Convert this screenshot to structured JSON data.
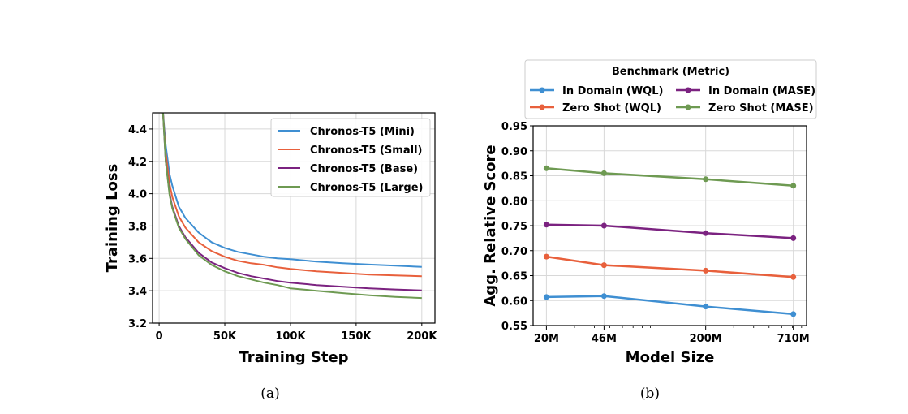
{
  "captions": {
    "a": "(a)",
    "b": "(b)"
  },
  "colors": {
    "mini": "#3f8fd2",
    "small": "#e8603c",
    "base": "#7b2280",
    "large": "#6e9a52"
  },
  "chart_data": [
    {
      "type": "line",
      "title": "",
      "xlabel": "Training Step",
      "ylabel": "Training Loss",
      "xlim": [
        -5000,
        210000
      ],
      "ylim": [
        3.2,
        4.5
      ],
      "xticks": [
        0,
        50000,
        100000,
        150000,
        200000
      ],
      "xtick_labels": [
        "0",
        "50K",
        "100K",
        "150K",
        "200K"
      ],
      "yticks": [
        3.2,
        3.4,
        3.6,
        3.8,
        4.0,
        4.2,
        4.4
      ],
      "ytick_labels": [
        "3.2",
        "3.4",
        "3.6",
        "3.8",
        "4.0",
        "4.2",
        "4.4"
      ],
      "grid": true,
      "legend_position": "top-right",
      "series": [
        {
          "name": "Chronos-T5 (Mini)",
          "color": "#3f8fd2",
          "x": [
            3000,
            5000,
            8000,
            10000,
            15000,
            20000,
            30000,
            40000,
            50000,
            60000,
            70000,
            80000,
            90000,
            100000,
            120000,
            140000,
            160000,
            180000,
            200000
          ],
          "y": [
            4.5,
            4.3,
            4.12,
            4.05,
            3.92,
            3.85,
            3.76,
            3.7,
            3.665,
            3.64,
            3.625,
            3.61,
            3.6,
            3.595,
            3.58,
            3.57,
            3.562,
            3.555,
            3.548
          ]
        },
        {
          "name": "Chronos-T5 (Small)",
          "color": "#e8603c",
          "x": [
            3000,
            5000,
            8000,
            10000,
            15000,
            20000,
            30000,
            40000,
            50000,
            60000,
            70000,
            80000,
            90000,
            100000,
            120000,
            140000,
            160000,
            180000,
            200000
          ],
          "y": [
            4.5,
            4.25,
            4.06,
            3.98,
            3.86,
            3.79,
            3.7,
            3.645,
            3.61,
            3.585,
            3.57,
            3.56,
            3.545,
            3.535,
            3.52,
            3.51,
            3.5,
            3.495,
            3.49
          ]
        },
        {
          "name": "Chronos-T5 (Base)",
          "color": "#7b2280",
          "x": [
            3000,
            5000,
            8000,
            10000,
            15000,
            20000,
            30000,
            40000,
            50000,
            60000,
            70000,
            80000,
            90000,
            100000,
            120000,
            140000,
            160000,
            180000,
            200000
          ],
          "y": [
            4.5,
            4.2,
            4.0,
            3.92,
            3.8,
            3.73,
            3.635,
            3.575,
            3.54,
            3.51,
            3.49,
            3.475,
            3.46,
            3.45,
            3.435,
            3.425,
            3.415,
            3.408,
            3.402
          ]
        },
        {
          "name": "Chronos-T5 (Large)",
          "color": "#6e9a52",
          "x": [
            3000,
            5000,
            8000,
            10000,
            15000,
            20000,
            30000,
            40000,
            50000,
            60000,
            70000,
            80000,
            90000,
            100000,
            120000,
            140000,
            160000,
            180000,
            200000
          ],
          "y": [
            4.5,
            4.2,
            3.99,
            3.91,
            3.79,
            3.72,
            3.62,
            3.56,
            3.52,
            3.49,
            3.47,
            3.45,
            3.435,
            3.415,
            3.4,
            3.385,
            3.372,
            3.362,
            3.355
          ]
        }
      ]
    },
    {
      "type": "line",
      "title": "",
      "xlabel": "Model Size",
      "ylabel": "Agg. Relative Score",
      "xscale": "log",
      "categories": [
        "20M",
        "46M",
        "200M",
        "710M"
      ],
      "x": [
        20,
        46,
        200,
        710
      ],
      "ylim": [
        0.55,
        0.95
      ],
      "yticks": [
        0.55,
        0.6,
        0.65,
        0.7,
        0.75,
        0.8,
        0.85,
        0.9,
        0.95
      ],
      "ytick_labels": [
        "0.55",
        "0.60",
        "0.65",
        "0.70",
        "0.75",
        "0.80",
        "0.85",
        "0.90",
        "0.95"
      ],
      "grid": true,
      "legend_title": "Benchmark (Metric)",
      "legend_position": "top, above plot",
      "series": [
        {
          "name": "In Domain (WQL)",
          "color": "#3f8fd2",
          "values": [
            0.607,
            0.609,
            0.588,
            0.573
          ]
        },
        {
          "name": "Zero Shot (WQL)",
          "color": "#e8603c",
          "values": [
            0.688,
            0.671,
            0.66,
            0.647
          ]
        },
        {
          "name": "In Domain (MASE)",
          "color": "#7b2280",
          "values": [
            0.752,
            0.75,
            0.735,
            0.725
          ]
        },
        {
          "name": "Zero Shot (MASE)",
          "color": "#6e9a52",
          "values": [
            0.865,
            0.855,
            0.843,
            0.83
          ]
        }
      ]
    }
  ]
}
